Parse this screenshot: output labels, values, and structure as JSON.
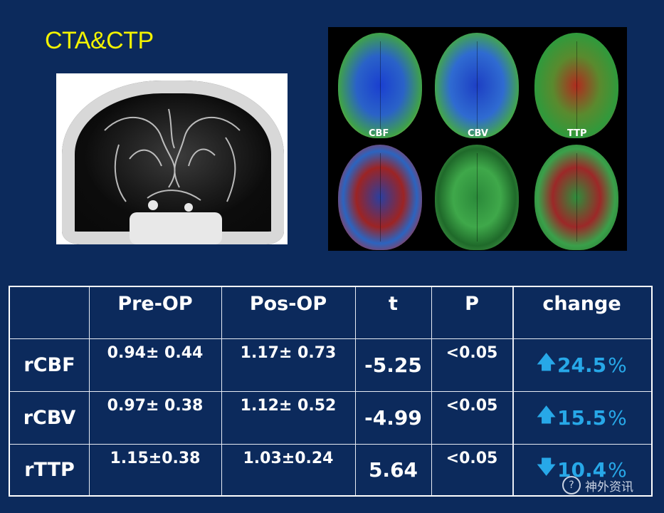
{
  "slide": {
    "title": "CTA&CTP"
  },
  "ctp_image": {
    "labels": [
      "CBF",
      "CBV",
      "TTP"
    ]
  },
  "table": {
    "headers": [
      "",
      "Pre-OP",
      "Pos-OP",
      "t",
      "P",
      "change"
    ],
    "rows": [
      {
        "label": "rCBF",
        "pre": "0.94± 0.44",
        "post": "1.17± 0.73",
        "t": "-5.25",
        "p": "<0.05",
        "arrow": "up-arrow-icon",
        "change": "24.5",
        "unit": "%"
      },
      {
        "label": "rCBV",
        "pre": "0.97± 0.38",
        "post": "1.12± 0.52",
        "t": "-4.99",
        "p": "<0.05",
        "arrow": "up-arrow-icon",
        "change": "15.5",
        "unit": "%"
      },
      {
        "label": "rTTP",
        "pre": "1.15±0.38",
        "post": "1.03±0.24",
        "t": "5.64",
        "p": "<0.05",
        "arrow": "down-arrow-icon",
        "change": "10.4",
        "unit": "%"
      }
    ]
  },
  "watermark": {
    "text": "神外资讯"
  },
  "colors": {
    "background": "#0c2a5c",
    "title": "#f2f200",
    "change": "#27a8e8"
  }
}
